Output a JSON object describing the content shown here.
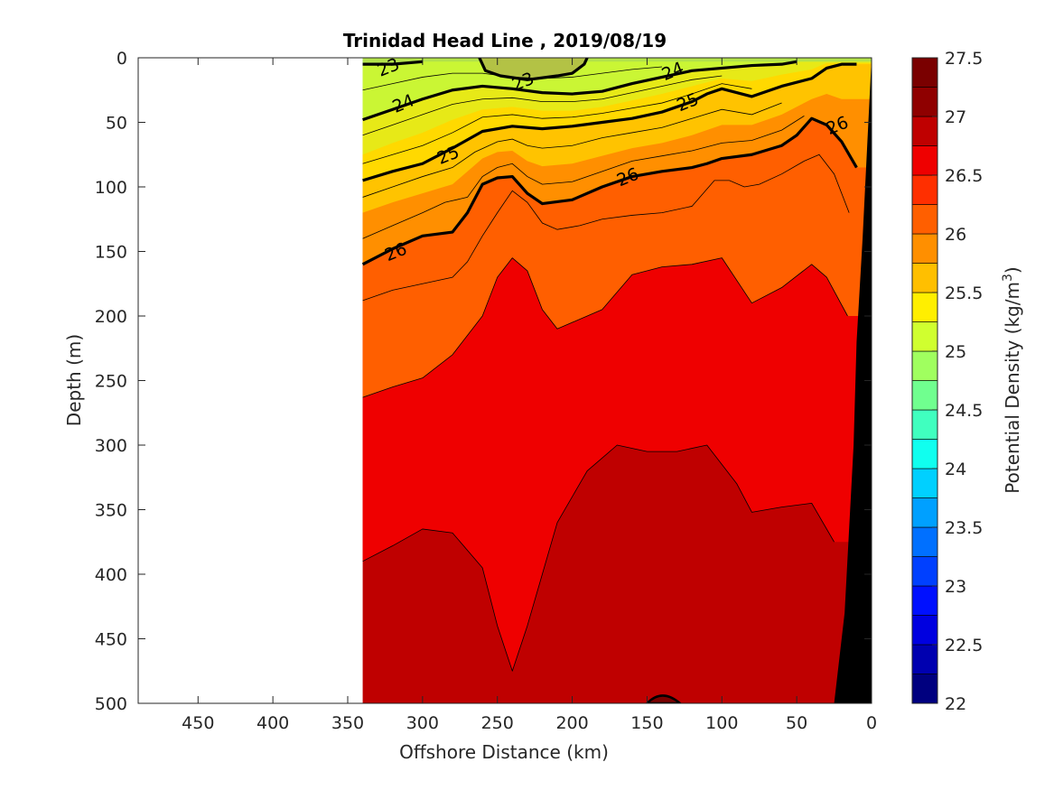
{
  "chart_data": {
    "type": "contour",
    "title": "Trinidad Head Line , 2019/08/19",
    "xlabel": "Offshore Distance (km)",
    "ylabel": "Depth (m)",
    "colorbar_label": "Potential Density (kg/m",
    "colorbar_label_sup": "3",
    "colorbar_label_close": ")",
    "xlim": [
      490,
      0
    ],
    "ylim": [
      500,
      0
    ],
    "x_reversed": true,
    "y_reversed": true,
    "x_ticks": [
      450,
      400,
      350,
      300,
      250,
      200,
      150,
      100,
      50,
      0
    ],
    "x_tick_labels": [
      "450",
      "400",
      "350",
      "300",
      "250",
      "200",
      "150",
      "100",
      "50",
      "0"
    ],
    "y_ticks": [
      0,
      50,
      100,
      150,
      200,
      250,
      300,
      350,
      400,
      450,
      500
    ],
    "y_tick_labels": [
      "0",
      "50",
      "100",
      "150",
      "200",
      "250",
      "300",
      "350",
      "400",
      "450",
      "500"
    ],
    "colorbar_range": [
      22,
      27.5
    ],
    "colorbar_ticks": [
      22,
      22.5,
      23,
      23.5,
      24,
      24.5,
      25,
      25.5,
      26,
      26.5,
      27,
      27.5
    ],
    "colorbar_tick_labels": [
      "22",
      "22.5",
      "23",
      "23.5",
      "24",
      "24.5",
      "25",
      "25.5",
      "26",
      "26.5",
      "27",
      "27.5"
    ],
    "levels": [
      22,
      22.25,
      22.5,
      22.75,
      23,
      23.25,
      23.5,
      23.75,
      24,
      24.25,
      24.5,
      24.75,
      25,
      25.25,
      25.5,
      25.75,
      26,
      26.25,
      26.5,
      26.75,
      27,
      27.25,
      27.5
    ],
    "level_colors": [
      "#00007f",
      "#0000b0",
      "#0000e0",
      "#0010ff",
      "#0040ff",
      "#0070ff",
      "#00a0ff",
      "#00d0ff",
      "#10ffef",
      "#40ffbf",
      "#70ff8f",
      "#a0ff5f",
      "#d0ff2f",
      "#ffef00",
      "#ffbf00",
      "#ff8f00",
      "#ff5f00",
      "#ff2f00",
      "#ef0000",
      "#bf0000",
      "#8f0000",
      "#7a0000"
    ],
    "data_x_range_km": [
      340,
      0
    ],
    "contour_labels": [
      {
        "text": "23",
        "x": 323,
        "y": 7
      },
      {
        "text": "23",
        "x": 233,
        "y": 18
      },
      {
        "text": "24",
        "x": 313,
        "y": 35
      },
      {
        "text": "24",
        "x": 133,
        "y": 10
      },
      {
        "text": "25",
        "x": 283,
        "y": 75
      },
      {
        "text": "25",
        "x": 123,
        "y": 34
      },
      {
        "text": "26",
        "x": 318,
        "y": 150
      },
      {
        "text": "26",
        "x": 163,
        "y": 92
      },
      {
        "text": "26",
        "x": 23,
        "y": 52
      }
    ],
    "isopycnals": [
      {
        "value": 26.5,
        "points": [
          [
            340,
            263
          ],
          [
            320,
            255
          ],
          [
            300,
            248
          ],
          [
            280,
            230
          ],
          [
            260,
            200
          ],
          [
            250,
            170
          ],
          [
            240,
            155
          ],
          [
            230,
            165
          ],
          [
            220,
            195
          ],
          [
            210,
            210
          ],
          [
            200,
            205
          ],
          [
            180,
            195
          ],
          [
            160,
            168
          ],
          [
            140,
            162
          ],
          [
            120,
            160
          ],
          [
            100,
            155
          ],
          [
            80,
            190
          ],
          [
            60,
            178
          ],
          [
            40,
            160
          ],
          [
            30,
            170
          ],
          [
            16,
            200
          ]
        ]
      },
      {
        "value": 27,
        "points": [
          [
            340,
            390
          ],
          [
            320,
            378
          ],
          [
            300,
            365
          ],
          [
            280,
            368
          ],
          [
            260,
            395
          ],
          [
            250,
            440
          ],
          [
            240,
            475
          ],
          [
            230,
            440
          ],
          [
            220,
            400
          ],
          [
            210,
            360
          ],
          [
            190,
            320
          ],
          [
            170,
            300
          ],
          [
            150,
            305
          ],
          [
            130,
            305
          ],
          [
            110,
            300
          ],
          [
            90,
            330
          ],
          [
            80,
            352
          ],
          [
            60,
            348
          ],
          [
            40,
            345
          ],
          [
            25,
            375
          ]
        ]
      },
      {
        "value": 26,
        "points": [
          [
            340,
            160
          ],
          [
            320,
            148
          ],
          [
            300,
            138
          ],
          [
            280,
            135
          ],
          [
            270,
            120
          ],
          [
            260,
            98
          ],
          [
            250,
            93
          ],
          [
            240,
            92
          ],
          [
            230,
            105
          ],
          [
            220,
            113
          ],
          [
            200,
            110
          ],
          [
            180,
            100
          ],
          [
            160,
            92
          ],
          [
            140,
            88
          ],
          [
            120,
            85
          ],
          [
            110,
            82
          ],
          [
            100,
            78
          ],
          [
            80,
            75
          ],
          [
            60,
            68
          ],
          [
            50,
            60
          ],
          [
            40,
            47
          ],
          [
            30,
            52
          ],
          [
            20,
            65
          ],
          [
            10,
            85
          ]
        ]
      },
      {
        "value": 25,
        "points": [
          [
            340,
            95
          ],
          [
            320,
            88
          ],
          [
            300,
            82
          ],
          [
            280,
            70
          ],
          [
            260,
            57
          ],
          [
            240,
            53
          ],
          [
            220,
            55
          ],
          [
            200,
            53
          ],
          [
            180,
            50
          ],
          [
            160,
            47
          ],
          [
            140,
            42
          ],
          [
            120,
            34
          ],
          [
            110,
            28
          ],
          [
            100,
            24
          ],
          [
            80,
            30
          ],
          [
            60,
            22
          ],
          [
            40,
            16
          ],
          [
            30,
            8
          ],
          [
            20,
            5
          ],
          [
            10,
            5
          ]
        ]
      },
      {
        "value": 24,
        "points": [
          [
            340,
            48
          ],
          [
            320,
            40
          ],
          [
            300,
            32
          ],
          [
            280,
            25
          ],
          [
            260,
            22
          ],
          [
            240,
            24
          ],
          [
            220,
            27
          ],
          [
            200,
            28
          ],
          [
            180,
            26
          ],
          [
            160,
            20
          ],
          [
            140,
            15
          ],
          [
            120,
            10
          ],
          [
            100,
            8
          ],
          [
            80,
            6
          ],
          [
            60,
            5
          ],
          [
            50,
            3
          ]
        ]
      },
      {
        "value": 23,
        "points": [
          [
            340,
            5
          ],
          [
            320,
            5
          ],
          [
            300,
            3
          ]
        ]
      },
      {
        "value": 23.1,
        "points": [
          [
            262,
            0
          ],
          [
            258,
            10
          ],
          [
            248,
            14
          ],
          [
            230,
            17
          ],
          [
            210,
            14
          ],
          [
            200,
            12
          ],
          [
            192,
            5
          ],
          [
            190,
            0
          ]
        ]
      }
    ],
    "bathymetry": {
      "points": [
        [
          25,
          500
        ],
        [
          18,
          430
        ],
        [
          12,
          300
        ],
        [
          10,
          220
        ],
        [
          6,
          140
        ],
        [
          3,
          70
        ],
        [
          0,
          0
        ]
      ]
    }
  }
}
